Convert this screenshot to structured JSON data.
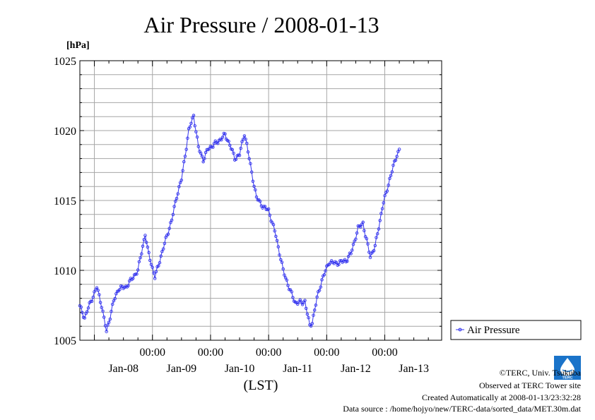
{
  "chart_data": {
    "type": "line",
    "title": "Air Pressure / 2008-01-13",
    "ylabel": "[hPa]",
    "xlabel": "(LST)",
    "ylim": [
      1005,
      1025
    ],
    "yticks": [
      "1025",
      "1020",
      "1015",
      "1010",
      "1005"
    ],
    "xlim": [
      "2008-01-07T18:00",
      "2008-01-13T23:30"
    ],
    "x_time_ticks": [
      "00:00",
      "00:00",
      "00:00",
      "00:00",
      "00:00"
    ],
    "x_date_labels": [
      "Jan-08",
      "Jan-09",
      "Jan-10",
      "Jan-11",
      "Jan-12",
      "Jan-13"
    ],
    "grid": true,
    "legend_position": "right",
    "series": [
      {
        "name": "Air Pressure",
        "color": "#3333ee",
        "marker": "circle",
        "x_start": "2008-01-07T18:00",
        "x_step": "30 minutes",
        "keypoints": [
          [
            "2008-01-07T18:00",
            1007.4
          ],
          [
            "2008-01-07T20:00",
            1006.6
          ],
          [
            "2008-01-07T21:00",
            1007.1
          ],
          [
            "2008-01-08T01:00",
            1008.8
          ],
          [
            "2008-01-08T03:00",
            1007.5
          ],
          [
            "2008-01-08T05:00",
            1005.6
          ],
          [
            "2008-01-08T08:00",
            1007.8
          ],
          [
            "2008-01-08T10:00",
            1008.7
          ],
          [
            "2008-01-08T13:00",
            1008.8
          ],
          [
            "2008-01-08T16:00",
            1009.5
          ],
          [
            "2008-01-08T18:00",
            1010.0
          ],
          [
            "2008-01-08T21:00",
            1012.6
          ],
          [
            "2008-01-08T22:00",
            1011.5
          ],
          [
            "2008-01-09T01:00",
            1009.5
          ],
          [
            "2008-01-09T04:00",
            1011.3
          ],
          [
            "2008-01-09T06:00",
            1012.5
          ],
          [
            "2008-01-09T08:00",
            1013.6
          ],
          [
            "2008-01-09T10:00",
            1015.3
          ],
          [
            "2008-01-09T12:00",
            1016.5
          ],
          [
            "2008-01-09T15:00",
            1020.0
          ],
          [
            "2008-01-09T17:00",
            1021.1
          ],
          [
            "2008-01-09T19:00",
            1018.8
          ],
          [
            "2008-01-09T21:00",
            1017.9
          ],
          [
            "2008-01-09T23:00",
            1018.7
          ],
          [
            "2008-01-10T03:00",
            1019.2
          ],
          [
            "2008-01-10T06:00",
            1019.7
          ],
          [
            "2008-01-10T08:00",
            1019.0
          ],
          [
            "2008-01-10T10:00",
            1018.0
          ],
          [
            "2008-01-10T12:00",
            1018.3
          ],
          [
            "2008-01-10T14:00",
            1019.8
          ],
          [
            "2008-01-10T15:00",
            1019.0
          ],
          [
            "2008-01-10T17:00",
            1017.0
          ],
          [
            "2008-01-10T19:00",
            1015.2
          ],
          [
            "2008-01-10T22:00",
            1014.5
          ],
          [
            "2008-01-11T00:00",
            1014.3
          ],
          [
            "2008-01-11T03:00",
            1012.5
          ],
          [
            "2008-01-11T06:00",
            1010.0
          ],
          [
            "2008-01-11T09:00",
            1008.5
          ],
          [
            "2008-01-11T11:00",
            1007.7
          ],
          [
            "2008-01-11T14:00",
            1007.7
          ],
          [
            "2008-01-11T15:00",
            1007.8
          ],
          [
            "2008-01-11T17:00",
            1006.0
          ],
          [
            "2008-01-11T18:00",
            1006.3
          ],
          [
            "2008-01-11T20:00",
            1008.0
          ],
          [
            "2008-01-11T22:00",
            1009.3
          ],
          [
            "2008-01-12T01:00",
            1010.6
          ],
          [
            "2008-01-12T04:00",
            1010.5
          ],
          [
            "2008-01-12T08:00",
            1010.7
          ],
          [
            "2008-01-12T10:00",
            1011.2
          ],
          [
            "2008-01-12T13:00",
            1013.0
          ],
          [
            "2008-01-12T15:00",
            1013.4
          ],
          [
            "2008-01-12T16:00",
            1012.5
          ],
          [
            "2008-01-12T18:00",
            1011.0
          ],
          [
            "2008-01-12T20:00",
            1011.7
          ],
          [
            "2008-01-12T23:00",
            1014.5
          ],
          [
            "2008-01-13T02:00",
            1016.5
          ],
          [
            "2008-01-13T05:00",
            1018.3
          ],
          [
            "2008-01-13T06:00",
            1018.6
          ]
        ]
      }
    ]
  },
  "credits": {
    "copyright": "©TERC, Univ. Tsukuba",
    "observed": "Observed at TERC Tower site",
    "created": "Created Automatically at 2008-01-13/23:32:28",
    "source": "Data source : /home/hojyo/new/TERC-data/sorted_data/MET.30m.dat"
  },
  "logo": {
    "text": "TERC",
    "color": "#1a73c9"
  }
}
